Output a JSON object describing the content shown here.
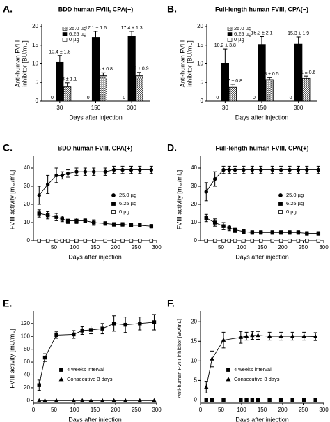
{
  "chart_data": [
    {
      "type": "bar",
      "panel_label": "A.",
      "title": "BDD human FVIII, CPA(−)",
      "ylabel": [
        "Anti-human FVIII",
        "inhibitor [BU/mL]"
      ],
      "xlabel": "Days after injection",
      "categories": [
        "30",
        "150",
        "300"
      ],
      "ylim": [
        0,
        20
      ],
      "yticks": [
        0,
        5,
        10,
        15,
        20
      ],
      "legend": "upper left",
      "series": [
        {
          "name": "25.0 µg",
          "fill": "checker",
          "values": [
            3.8,
            6.8,
            6.8
          ],
          "errors": [
            1.1,
            0.8,
            0.9
          ],
          "value_labels": [
            "3.8 ± 1.1",
            "6.8 ± 0.8",
            "6.8 ± 0.9"
          ]
        },
        {
          "name": "6.25 µg",
          "fill": "#000000",
          "values": [
            10.4,
            17.1,
            17.4
          ],
          "errors": [
            1.8,
            1.6,
            1.3
          ],
          "value_labels": [
            "10.4 ± 1.8",
            "17.1 ± 1.6",
            "17.4 ± 1.3"
          ]
        },
        {
          "name": "0 µg",
          "fill": "#ffffff",
          "values": [
            0,
            0,
            0
          ]
        }
      ]
    },
    {
      "type": "bar",
      "panel_label": "B.",
      "title": "Full-length human FVIII, CPA(−)",
      "ylabel": [
        "Anti-human FVIII",
        "inhibitor [BU/mL]"
      ],
      "xlabel": "Days after injection",
      "categories": [
        "30",
        "150",
        "300"
      ],
      "ylim": [
        0,
        20
      ],
      "yticks": [
        0,
        5,
        10,
        15,
        20
      ],
      "legend": "upper left",
      "series": [
        {
          "name": "25.0 µg",
          "fill": "checker",
          "values": [
            3.7,
            5.8,
            6.1
          ],
          "errors": [
            0.8,
            0.5,
            0.6
          ],
          "value_labels": [
            "3.7 ± 0.8",
            "5.8 ± 0.5",
            "6.1 ± 0.6"
          ]
        },
        {
          "name": "6.25 µg",
          "fill": "#000000",
          "values": [
            10.2,
            15.2,
            15.3
          ],
          "errors": [
            3.8,
            2.1,
            1.9
          ],
          "value_labels": [
            "10.2 ± 3.8",
            "15.2 ± 2.1",
            "15.3 ± 1.9"
          ]
        },
        {
          "name": "0 µg",
          "fill": "#ffffff",
          "values": [
            0,
            0,
            0
          ]
        }
      ]
    },
    {
      "type": "line",
      "panel_label": "C.",
      "title": "BDD human FVIII, CPA(+)",
      "ylabel": "FVIII activity [mU/mL]",
      "xlabel": "Days after injection",
      "x": [
        14,
        35,
        56,
        70,
        84,
        105,
        126,
        147,
        175,
        196,
        217,
        238,
        259,
        287
      ],
      "xlim": [
        0,
        300
      ],
      "xticks": [
        50,
        100,
        150,
        200,
        250,
        300
      ],
      "ylim": [
        0,
        45
      ],
      "yticks": [
        0,
        10,
        20,
        30,
        40
      ],
      "legend": "center right",
      "series": [
        {
          "name": "25.0 µg",
          "marker": "circle",
          "filled": true,
          "values": [
            25,
            31,
            36,
            36,
            37,
            38,
            38,
            38,
            38,
            39,
            39,
            39,
            39,
            39
          ],
          "errors": [
            5,
            5,
            4,
            2,
            2,
            2,
            2,
            2,
            2,
            2,
            2,
            2,
            2,
            2
          ]
        },
        {
          "name": "6.25 µg",
          "marker": "square",
          "filled": true,
          "values": [
            15,
            14,
            13,
            12,
            11,
            11,
            11,
            10,
            9.5,
            9,
            9,
            8.5,
            8.5,
            8
          ],
          "errors": [
            2,
            2,
            2,
            1.5,
            1.5,
            1.5,
            1,
            1.5,
            1,
            1,
            1,
            1,
            1,
            1
          ]
        },
        {
          "name": "0 µg",
          "marker": "square",
          "filled": false,
          "values": [
            0,
            0,
            0,
            0,
            0,
            0,
            0,
            0,
            0,
            0,
            0,
            0,
            0,
            0
          ]
        }
      ]
    },
    {
      "type": "line",
      "panel_label": "D.",
      "title": "Full-length human FVIII, CPA(+)",
      "ylabel": "FVIII activity [mU/mL]",
      "xlabel": "Days after injection",
      "x": [
        14,
        35,
        56,
        70,
        84,
        105,
        126,
        147,
        175,
        196,
        217,
        238,
        259,
        287
      ],
      "xlim": [
        0,
        300
      ],
      "xticks": [
        50,
        100,
        150,
        200,
        250,
        300
      ],
      "ylim": [
        0,
        45
      ],
      "yticks": [
        0,
        10,
        20,
        30,
        40
      ],
      "legend": "center right",
      "series": [
        {
          "name": "25.0 µg",
          "marker": "circle",
          "filled": true,
          "values": [
            27,
            34,
            39,
            39,
            39,
            39,
            39,
            39,
            39,
            39,
            39,
            39,
            39,
            39
          ],
          "errors": [
            5,
            4,
            2,
            2,
            2,
            2,
            2,
            2,
            2,
            2,
            2,
            2,
            2,
            2
          ]
        },
        {
          "name": "6.25 µg",
          "marker": "square",
          "filled": true,
          "values": [
            12.5,
            10,
            8,
            7,
            6,
            5,
            4.5,
            4.5,
            4.5,
            4.5,
            4.5,
            4.5,
            4,
            4
          ],
          "errors": [
            2,
            2,
            2,
            1.5,
            1.5,
            1,
            1,
            1,
            1,
            1,
            1,
            1,
            1,
            1
          ]
        },
        {
          "name": "0 µg",
          "marker": "square",
          "filled": false,
          "values": [
            0,
            0,
            0,
            0,
            0,
            0,
            0,
            0,
            0,
            0,
            0,
            0,
            0,
            0
          ]
        }
      ]
    },
    {
      "type": "line",
      "panel_label": "E.",
      "ylabel": "FVIII activity [mU/mL]",
      "xlabel": "Days after injection",
      "x": [
        14,
        28,
        56,
        98,
        119,
        140,
        168,
        196,
        224,
        259,
        294
      ],
      "xlim": [
        0,
        300
      ],
      "xticks": [
        0,
        50,
        100,
        150,
        200,
        250,
        300
      ],
      "ylim": [
        -4,
        135
      ],
      "yticks": [
        0,
        20,
        40,
        60,
        80,
        100,
        120
      ],
      "legend": "lower center",
      "series": [
        {
          "name": "4 weeks interval",
          "marker": "square",
          "filled": true,
          "values": [
            24,
            67,
            102,
            103,
            109,
            110,
            112,
            120,
            118,
            120,
            122
          ],
          "errors": [
            8,
            6,
            5,
            6,
            6,
            6,
            8,
            12,
            12,
            10,
            12
          ]
        },
        {
          "name": "Consecutive 3 days",
          "marker": "triangle",
          "filled": true,
          "values": [
            0,
            0,
            0,
            0,
            0,
            0,
            0,
            0,
            0,
            0,
            0
          ]
        }
      ]
    },
    {
      "type": "line",
      "panel_label": "F.",
      "ylabel": "Anti-human FVIII inhibitor [BU/mL]",
      "xlabel": "Days after injection",
      "x": [
        14,
        28,
        56,
        98,
        112,
        126,
        140,
        168,
        196,
        224,
        252,
        280
      ],
      "xlim": [
        0,
        300
      ],
      "xticks": [
        0,
        50,
        100,
        150,
        200,
        250,
        300
      ],
      "ylim": [
        -0.8,
        22
      ],
      "yticks": [
        0,
        5,
        10,
        15,
        20
      ],
      "legend": "lower center",
      "series": [
        {
          "name": "4 weeks interval",
          "marker": "square",
          "filled": true,
          "values": [
            0,
            0,
            0,
            0,
            0,
            0,
            0,
            0,
            0,
            0,
            0,
            0
          ]
        },
        {
          "name": "Consecutive 3 days",
          "marker": "triangle",
          "filled": true,
          "values": [
            3.3,
            10.5,
            15.3,
            16,
            16.3,
            16.5,
            16.5,
            16.3,
            16.3,
            16.3,
            16.3,
            16.2
          ],
          "errors": [
            1.5,
            2,
            2,
            1.5,
            1,
            1,
            1,
            1,
            1,
            1,
            1,
            1
          ]
        }
      ]
    }
  ]
}
